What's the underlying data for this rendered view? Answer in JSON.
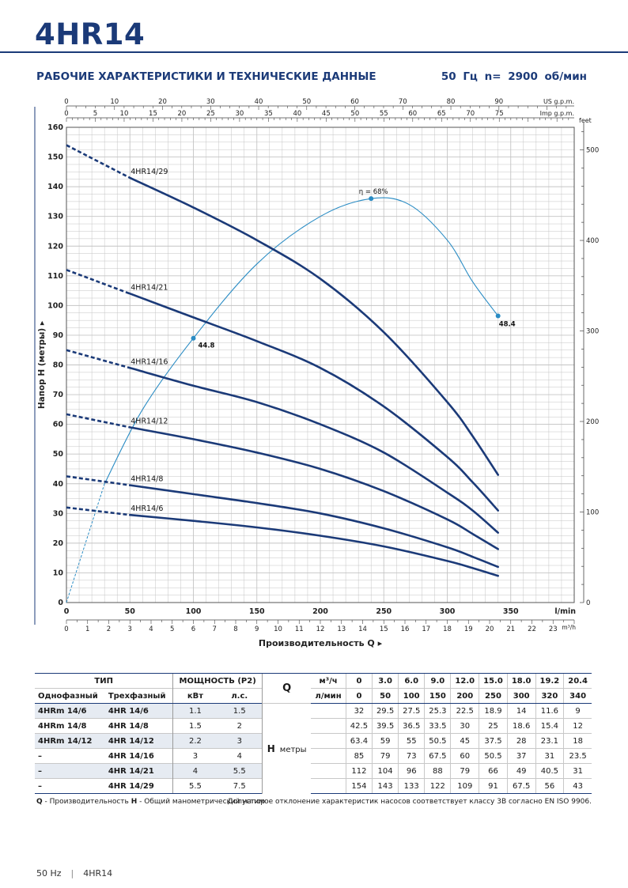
{
  "header": {
    "model": "4HR14",
    "section_title": "РАБОЧИЕ ХАРАКТЕРИСТИКИ И ТЕХНИЧЕСКИЕ ДАННЫЕ",
    "frequency": "50 Гц   n= 2900 об/мин"
  },
  "colors": {
    "brand": "#1b3a78",
    "curve": "#1b3a78",
    "efficiency": "#2a8cc4",
    "grid": "#c4c4c4"
  },
  "chart_data": {
    "type": "line",
    "xlabel": "Производительность Q",
    "ylabel": "Напор H (метры)",
    "x_unit": "l/min",
    "xlim": [
      0,
      375
    ],
    "ylim": [
      0,
      160
    ],
    "x_ticks": [
      0,
      50,
      100,
      150,
      200,
      250,
      300,
      350
    ],
    "y_ticks": [
      0,
      10,
      20,
      30,
      40,
      50,
      60,
      70,
      80,
      90,
      100,
      110,
      120,
      130,
      140,
      150,
      160
    ],
    "top_axis_us": {
      "label": "US g.p.m.",
      "ticks": [
        0,
        10,
        20,
        30,
        40,
        50,
        60,
        70,
        80,
        90
      ]
    },
    "top_axis_imp": {
      "label": "Imp g.p.m.",
      "ticks": [
        0,
        5,
        10,
        15,
        20,
        25,
        30,
        35,
        40,
        45,
        50,
        55,
        60,
        65,
        70,
        75
      ]
    },
    "bottom_axis_m3h": {
      "label": "m³/h",
      "ticks": [
        0,
        1,
        2,
        3,
        4,
        5,
        6,
        7,
        8,
        9,
        10,
        11,
        12,
        13,
        14,
        15,
        16,
        17,
        18,
        19,
        20,
        21,
        22,
        23
      ]
    },
    "right_axis_feet": {
      "label": "feet",
      "ticks": [
        0,
        100,
        200,
        300,
        400,
        500
      ]
    },
    "series": [
      {
        "name": "4HR14/29",
        "dashed": {
          "x": [
            0,
            50
          ],
          "y": [
            154,
            143
          ]
        },
        "x": [
          50,
          100,
          150,
          200,
          250,
          300,
          320,
          340
        ],
        "y": [
          143,
          133,
          122,
          109,
          91,
          67.5,
          56,
          43
        ]
      },
      {
        "name": "4HR14/21",
        "dashed": {
          "x": [
            0,
            50
          ],
          "y": [
            112,
            104
          ]
        },
        "x": [
          50,
          100,
          150,
          200,
          250,
          300,
          320,
          340
        ],
        "y": [
          104,
          96,
          88,
          79,
          66,
          49,
          40.5,
          31
        ]
      },
      {
        "name": "4HR14/16",
        "dashed": {
          "x": [
            0,
            50
          ],
          "y": [
            85,
            79
          ]
        },
        "x": [
          50,
          100,
          150,
          200,
          250,
          300,
          320,
          340
        ],
        "y": [
          79,
          73,
          67.5,
          60,
          50.5,
          37,
          31,
          23.5
        ]
      },
      {
        "name": "4HR14/12",
        "dashed": {
          "x": [
            0,
            50
          ],
          "y": [
            63.4,
            59
          ]
        },
        "x": [
          50,
          100,
          150,
          200,
          250,
          300,
          320,
          340
        ],
        "y": [
          59,
          55,
          50.5,
          45,
          37.5,
          28,
          23.1,
          18
        ]
      },
      {
        "name": "4HR14/8",
        "dashed": {
          "x": [
            0,
            50
          ],
          "y": [
            42.5,
            39.5
          ]
        },
        "x": [
          50,
          100,
          150,
          200,
          250,
          300,
          320,
          340
        ],
        "y": [
          39.5,
          36.5,
          33.5,
          30,
          25,
          18.6,
          15.4,
          12
        ]
      },
      {
        "name": "4HR14/6",
        "dashed": {
          "x": [
            0,
            50
          ],
          "y": [
            32,
            29.5
          ]
        },
        "x": [
          50,
          100,
          150,
          200,
          250,
          300,
          320,
          340
        ],
        "y": [
          29.5,
          27.5,
          25.3,
          22.5,
          18.9,
          14,
          11.6,
          9
        ]
      }
    ],
    "efficiency_curve": {
      "dashed": {
        "x": [
          0,
          30
        ],
        "y": [
          0,
          40
        ]
      },
      "x": [
        30,
        60,
        100,
        150,
        200,
        240,
        270,
        300,
        320,
        340
      ],
      "y": [
        40,
        65,
        89,
        114,
        130,
        136,
        134,
        122,
        108,
        96.5
      ]
    },
    "annotations": [
      {
        "text": "44.8",
        "x": 100,
        "y": 89
      },
      {
        "text": "η = 68%",
        "x": 240,
        "y": 136
      },
      {
        "text": "48.4",
        "x": 340,
        "y": 96.5
      }
    ]
  },
  "table": {
    "col_type": "ТИП",
    "col_power": "МОЩНОСТЬ (P2)",
    "q_label": "Q",
    "q_unit1": "м³/ч",
    "q_unit2": "л/мин",
    "single_phase": "Однофазный",
    "three_phase": "Трехфазный",
    "kw": "кВт",
    "hp": "л.с.",
    "h_label": "H",
    "h_unit": "метры",
    "q_m3h": [
      "0",
      "3.0",
      "6.0",
      "9.0",
      "12.0",
      "15.0",
      "18.0",
      "19.2",
      "20.4"
    ],
    "q_lmin": [
      "0",
      "50",
      "100",
      "150",
      "200",
      "250",
      "300",
      "320",
      "340"
    ],
    "rows": [
      {
        "single": "4HRm 14/6",
        "three": "4HR 14/6",
        "kw": "1.1",
        "hp": "1.5",
        "h": [
          "32",
          "29.5",
          "27.5",
          "25.3",
          "22.5",
          "18.9",
          "14",
          "11.6",
          "9"
        ]
      },
      {
        "single": "4HRm 14/8",
        "three": "4HR 14/8",
        "kw": "1.5",
        "hp": "2",
        "h": [
          "42.5",
          "39.5",
          "36.5",
          "33.5",
          "30",
          "25",
          "18.6",
          "15.4",
          "12"
        ]
      },
      {
        "single": "4HRm 14/12",
        "three": "4HR 14/12",
        "kw": "2.2",
        "hp": "3",
        "h": [
          "63.4",
          "59",
          "55",
          "50.5",
          "45",
          "37.5",
          "28",
          "23.1",
          "18"
        ]
      },
      {
        "single": "–",
        "three": "4HR 14/16",
        "kw": "3",
        "hp": "4",
        "h": [
          "85",
          "79",
          "73",
          "67.5",
          "60",
          "50.5",
          "37",
          "31",
          "23.5"
        ]
      },
      {
        "single": "–",
        "three": "4HR 14/21",
        "kw": "4",
        "hp": "5.5",
        "h": [
          "112",
          "104",
          "96",
          "88",
          "79",
          "66",
          "49",
          "40.5",
          "31"
        ]
      },
      {
        "single": "–",
        "three": "4HR 14/29",
        "kw": "5.5",
        "hp": "7.5",
        "h": [
          "154",
          "143",
          "133",
          "122",
          "109",
          "91",
          "67.5",
          "56",
          "43"
        ]
      }
    ]
  },
  "legend": {
    "left_q": "Q",
    "left_q_text": " - Производительность ",
    "left_h": "H",
    "left_h_text": " - Общий манометрический напор",
    "right": "Допустимое отклонение характеристик насосов соответствует классу 3В согласно EN ISO 9906."
  },
  "footer": {
    "freq": "50 Hz",
    "model": "4HR14"
  }
}
